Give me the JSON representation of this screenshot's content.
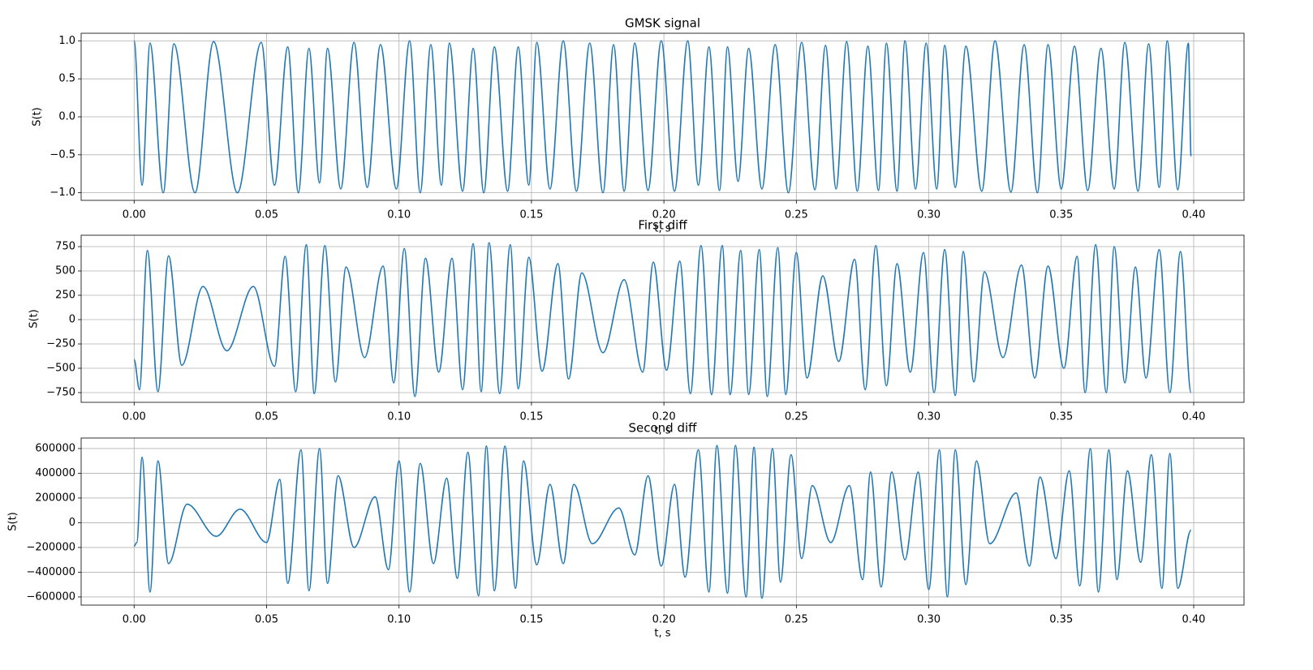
{
  "chart_data": [
    {
      "type": "line",
      "title": "GMSK signal",
      "xlabel": "t, s",
      "ylabel": "S(t)",
      "color": "#1f77b4",
      "grid": true,
      "xlim": [
        -0.02,
        0.419
      ],
      "ylim": [
        -1.1,
        1.1
      ],
      "xticks": [
        {
          "value": 0,
          "label": "0.00"
        },
        {
          "value": 0.05,
          "label": "0.05"
        },
        {
          "value": 0.1,
          "label": "0.10"
        },
        {
          "value": 0.15,
          "label": "0.15"
        },
        {
          "value": 0.2,
          "label": "0.20"
        },
        {
          "value": 0.25,
          "label": "0.25"
        },
        {
          "value": 0.3,
          "label": "0.30"
        },
        {
          "value": 0.35,
          "label": "0.35"
        },
        {
          "value": 0.4,
          "label": "0.40"
        }
      ],
      "yticks": [
        {
          "value": -1,
          "label": "−1.0"
        },
        {
          "value": -0.5,
          "label": "−0.5"
        },
        {
          "value": 0,
          "label": "0.0"
        },
        0.5,
        {
          "value": 1,
          "label": "1.0"
        }
      ],
      "x": [
        0,
        0.003,
        0.006,
        0.011,
        0.015,
        0.023,
        0.03,
        0.039,
        0.048,
        0.053,
        0.058,
        0.062,
        0.066,
        0.07,
        0.073,
        0.078,
        0.083,
        0.088,
        0.093,
        0.099,
        0.104,
        0.108,
        0.112,
        0.116,
        0.119,
        0.124,
        0.128,
        0.132,
        0.136,
        0.141,
        0.145,
        0.149,
        0.152,
        0.157,
        0.162,
        0.167,
        0.172,
        0.177,
        0.181,
        0.185,
        0.189,
        0.194,
        0.199,
        0.204,
        0.209,
        0.213,
        0.217,
        0.221,
        0.224,
        0.228,
        0.232,
        0.237,
        0.242,
        0.247,
        0.252,
        0.257,
        0.261,
        0.265,
        0.269,
        0.273,
        0.277,
        0.281,
        0.284,
        0.288,
        0.291,
        0.295,
        0.299,
        0.303,
        0.306,
        0.31,
        0.314,
        0.32,
        0.325,
        0.331,
        0.336,
        0.341,
        0.345,
        0.35,
        0.355,
        0.36,
        0.365,
        0.37,
        0.374,
        0.379,
        0.383,
        0.387,
        0.39,
        0.394,
        0.398,
        0.399
      ],
      "values": [
        1.0,
        -0.9,
        0.97,
        -1.0,
        0.96,
        -1.0,
        0.99,
        -1.0,
        0.98,
        -0.9,
        0.92,
        -1.0,
        0.9,
        -0.87,
        0.9,
        -0.95,
        0.98,
        -0.93,
        0.95,
        -0.95,
        1.0,
        -1.0,
        0.95,
        -0.9,
        0.97,
        -0.98,
        0.9,
        -1.0,
        0.92,
        -0.98,
        0.92,
        -0.9,
        0.98,
        -0.95,
        1.0,
        -0.98,
        0.97,
        -1.0,
        0.95,
        -0.98,
        0.97,
        -0.97,
        1.0,
        -0.98,
        1.0,
        -0.9,
        0.92,
        -0.97,
        0.92,
        -0.85,
        0.9,
        -0.95,
        0.95,
        -1.0,
        0.98,
        -0.96,
        0.94,
        -0.95,
        0.99,
        -0.98,
        0.93,
        -0.97,
        0.97,
        -0.98,
        1.0,
        -0.95,
        0.97,
        -0.95,
        0.94,
        -0.93,
        0.93,
        -0.98,
        1.0,
        -0.99,
        0.95,
        -1.0,
        0.95,
        -0.95,
        0.93,
        -0.97,
        0.9,
        -0.95,
        0.98,
        -0.98,
        0.96,
        -0.93,
        1.0,
        -0.96,
        0.97,
        -0.52
      ]
    },
    {
      "type": "line",
      "title": "First diff",
      "xlabel": "t, s",
      "ylabel": "S(t)",
      "color": "#1f77b4",
      "grid": true,
      "xlim": [
        -0.02,
        0.419
      ],
      "ylim": [
        -850,
        867
      ],
      "xticks": [
        {
          "value": 0,
          "label": "0.00"
        },
        {
          "value": 0.05,
          "label": "0.05"
        },
        {
          "value": 0.1,
          "label": "0.10"
        },
        {
          "value": 0.15,
          "label": "0.15"
        },
        {
          "value": 0.2,
          "label": "0.20"
        },
        {
          "value": 0.25,
          "label": "0.25"
        },
        {
          "value": 0.3,
          "label": "0.30"
        },
        {
          "value": 0.35,
          "label": "0.35"
        },
        {
          "value": 0.4,
          "label": "0.40"
        }
      ],
      "yticks": [
        {
          "value": -750,
          "label": "−750"
        },
        {
          "value": -500,
          "label": "−500"
        },
        {
          "value": -250,
          "label": "−250"
        },
        0,
        250,
        500,
        750
      ],
      "x": [
        0,
        0.002,
        0.005,
        0.009,
        0.013,
        0.018,
        0.026,
        0.035,
        0.045,
        0.053,
        0.057,
        0.061,
        0.065,
        0.068,
        0.072,
        0.076,
        0.08,
        0.087,
        0.094,
        0.098,
        0.102,
        0.106,
        0.11,
        0.115,
        0.12,
        0.124,
        0.128,
        0.131,
        0.134,
        0.138,
        0.142,
        0.145,
        0.149,
        0.154,
        0.16,
        0.164,
        0.169,
        0.177,
        0.185,
        0.192,
        0.196,
        0.201,
        0.206,
        0.21,
        0.214,
        0.218,
        0.222,
        0.225,
        0.229,
        0.232,
        0.236,
        0.239,
        0.243,
        0.246,
        0.25,
        0.254,
        0.26,
        0.266,
        0.272,
        0.276,
        0.28,
        0.284,
        0.288,
        0.293,
        0.298,
        0.302,
        0.306,
        0.31,
        0.313,
        0.317,
        0.321,
        0.328,
        0.335,
        0.34,
        0.345,
        0.351,
        0.356,
        0.359,
        0.363,
        0.367,
        0.37,
        0.374,
        0.378,
        0.382,
        0.387,
        0.391,
        0.395,
        0.399
      ],
      "values": [
        -410,
        -720,
        710,
        -740,
        655,
        -470,
        340,
        -320,
        340,
        -480,
        650,
        -740,
        770,
        -760,
        760,
        -640,
        540,
        -390,
        550,
        -650,
        730,
        -790,
        630,
        -540,
        630,
        -720,
        780,
        -740,
        790,
        -760,
        770,
        -710,
        640,
        -530,
        575,
        -610,
        480,
        -340,
        410,
        -540,
        590,
        -520,
        600,
        -760,
        760,
        -770,
        760,
        -770,
        710,
        -770,
        720,
        -790,
        740,
        -770,
        690,
        -600,
        450,
        -430,
        620,
        -720,
        760,
        -680,
        575,
        -540,
        690,
        -750,
        720,
        -780,
        700,
        -640,
        490,
        -390,
        560,
        -600,
        550,
        -500,
        650,
        -750,
        770,
        -750,
        750,
        -650,
        540,
        -600,
        720,
        -750,
        700,
        -750
      ]
    },
    {
      "type": "line",
      "title": "Second diff",
      "xlabel": "t, s",
      "ylabel": "S(t)",
      "color": "#1f77b4",
      "grid": true,
      "xlim": [
        -0.02,
        0.419
      ],
      "ylim": [
        -666000,
        685000
      ],
      "xticks": [
        {
          "value": 0,
          "label": "0.00"
        },
        {
          "value": 0.05,
          "label": "0.05"
        },
        {
          "value": 0.1,
          "label": "0.10"
        },
        {
          "value": 0.15,
          "label": "0.15"
        },
        {
          "value": 0.2,
          "label": "0.20"
        },
        {
          "value": 0.25,
          "label": "0.25"
        },
        {
          "value": 0.3,
          "label": "0.30"
        },
        {
          "value": 0.35,
          "label": "0.35"
        },
        {
          "value": 0.4,
          "label": "0.40"
        }
      ],
      "yticks": [
        {
          "value": -600000,
          "label": "−600000"
        },
        {
          "value": -400000,
          "label": "−400000"
        },
        {
          "value": -200000,
          "label": "−200000"
        },
        0,
        200000,
        400000,
        600000
      ],
      "x": [
        0,
        0.001,
        0.003,
        0.006,
        0.009,
        0.013,
        0.02,
        0.031,
        0.04,
        0.05,
        0.055,
        0.058,
        0.063,
        0.066,
        0.07,
        0.073,
        0.077,
        0.083,
        0.091,
        0.096,
        0.1,
        0.104,
        0.108,
        0.113,
        0.118,
        0.122,
        0.126,
        0.13,
        0.133,
        0.136,
        0.14,
        0.144,
        0.147,
        0.152,
        0.157,
        0.162,
        0.166,
        0.173,
        0.183,
        0.189,
        0.194,
        0.199,
        0.204,
        0.208,
        0.213,
        0.217,
        0.22,
        0.224,
        0.227,
        0.231,
        0.234,
        0.237,
        0.241,
        0.244,
        0.248,
        0.252,
        0.256,
        0.263,
        0.27,
        0.275,
        0.278,
        0.282,
        0.286,
        0.291,
        0.296,
        0.3,
        0.304,
        0.307,
        0.31,
        0.314,
        0.318,
        0.323,
        0.333,
        0.338,
        0.342,
        0.348,
        0.353,
        0.357,
        0.361,
        0.364,
        0.368,
        0.371,
        0.375,
        0.38,
        0.384,
        0.388,
        0.391,
        0.394,
        0.399
      ],
      "values": [
        -190000,
        -160000,
        530000,
        -560000,
        500000,
        -330000,
        150000,
        -110000,
        110000,
        -160000,
        350000,
        -490000,
        590000,
        -550000,
        600000,
        -490000,
        380000,
        -200000,
        210000,
        -380000,
        500000,
        -560000,
        480000,
        -330000,
        360000,
        -450000,
        570000,
        -590000,
        620000,
        -550000,
        620000,
        -530000,
        500000,
        -340000,
        310000,
        -330000,
        310000,
        -170000,
        120000,
        -260000,
        380000,
        -350000,
        310000,
        -440000,
        590000,
        -560000,
        625000,
        -570000,
        625000,
        -600000,
        610000,
        -610000,
        600000,
        -480000,
        550000,
        -290000,
        300000,
        -160000,
        300000,
        -460000,
        410000,
        -520000,
        410000,
        -300000,
        410000,
        -540000,
        590000,
        -600000,
        590000,
        -500000,
        500000,
        -170000,
        240000,
        -350000,
        370000,
        -290000,
        420000,
        -510000,
        600000,
        -560000,
        590000,
        -460000,
        420000,
        -320000,
        550000,
        -530000,
        560000,
        -530000,
        -60000
      ]
    }
  ]
}
